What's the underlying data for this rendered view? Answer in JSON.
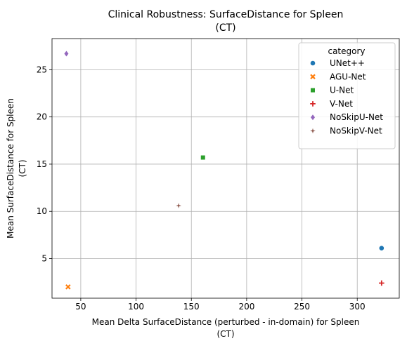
{
  "chart_data": {
    "type": "scatter",
    "title": "Clinical Robustness: SurfaceDistance for Spleen",
    "title_line2": "(CT)",
    "xlabel": "Mean Delta SurfaceDistance (perturbed - in-domain) for Spleen",
    "xlabel_line2": "(CT)",
    "ylabel": "Mean SurfaceDistance for Spleen",
    "ylabel_line2": "(CT)",
    "xlim": [
      24,
      338
    ],
    "ylim": [
      0.8,
      28.3
    ],
    "xticks": [
      50,
      100,
      150,
      200,
      250,
      300
    ],
    "yticks": [
      5,
      10,
      15,
      20,
      25
    ],
    "grid": true,
    "legend": {
      "title": "category",
      "placement": "top-right"
    },
    "series": [
      {
        "name": "UNet++",
        "marker": "circle",
        "color": "#1f77b4",
        "x": 322.0,
        "y": 6.1
      },
      {
        "name": "AGU-Net",
        "marker": "x",
        "color": "#ff7f0e",
        "x": 38.5,
        "y": 2.0
      },
      {
        "name": "U-Net",
        "marker": "square",
        "color": "#2ca02c",
        "x": 160.5,
        "y": 15.7
      },
      {
        "name": "V-Net",
        "marker": "plus",
        "color": "#d62728",
        "x": 322.0,
        "y": 2.4
      },
      {
        "name": "NoSkipU-Net",
        "marker": "diamond",
        "color": "#9467bd",
        "x": 37.0,
        "y": 26.7
      },
      {
        "name": "NoSkipV-Net",
        "marker": "star",
        "color": "#8c564b",
        "x": 138.5,
        "y": 10.6
      }
    ]
  }
}
